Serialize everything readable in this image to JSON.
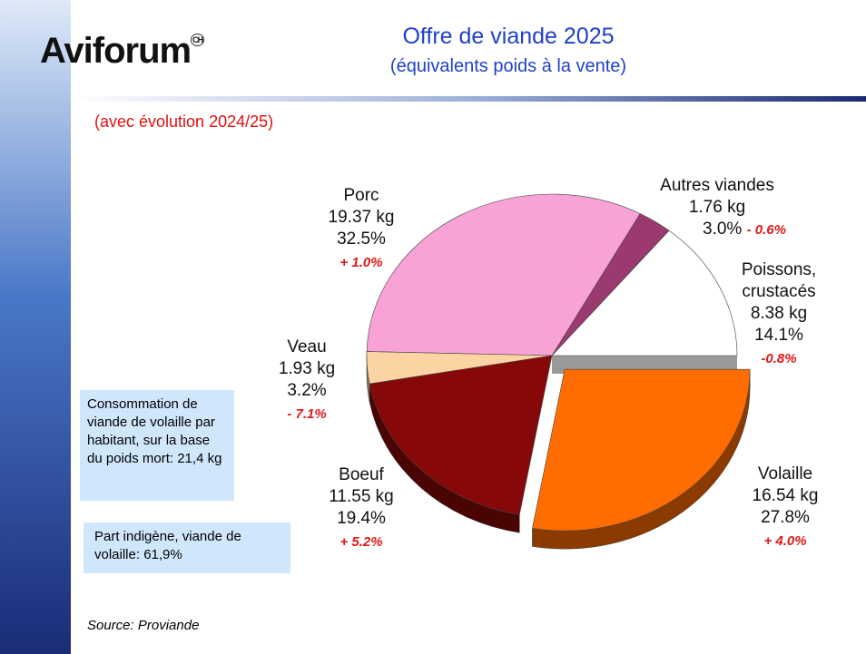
{
  "header": {
    "logo": "Aviforum",
    "logo_mark": "CH"
  },
  "chart_data": {
    "type": "pie",
    "title": "Offre de viande 2025",
    "subtitle": "(équivalents poids à la vente)",
    "note": "(avec évolution 2024/25)",
    "categories": [
      "Poissons, crustacés",
      "Autres viandes",
      "Porc",
      "Veau",
      "Boeuf",
      "Volaille"
    ],
    "values": [
      14.1,
      3.0,
      32.5,
      3.2,
      19.4,
      27.8
    ],
    "value_labels": [
      "14.1%",
      "3.0%",
      "32.5%",
      "3.2%",
      "19.4%",
      "27.8%"
    ],
    "weights": [
      "8.38 kg",
      "1.76 kg",
      "19.37 kg",
      "1.93 kg",
      "11.55 kg",
      "16.54 kg"
    ],
    "changes": [
      "-0.8%",
      "- 0.6%",
      "+ 1.0%",
      "- 7.1%",
      "+ 5.2%",
      "+ 4.0%"
    ],
    "colors": [
      "#ffffff",
      "#9b3a6e",
      "#f8a2d6",
      "#fcd3a2",
      "#860808",
      "#ff6c00"
    ],
    "exploded": "Volaille",
    "source": "Source: Proviande"
  },
  "info_boxes": [
    "Consommation de viande de volaille par habitant, sur la base du poids mort: 21,4 kg",
    "Part indigène, viande de volaille:  61,9%"
  ]
}
